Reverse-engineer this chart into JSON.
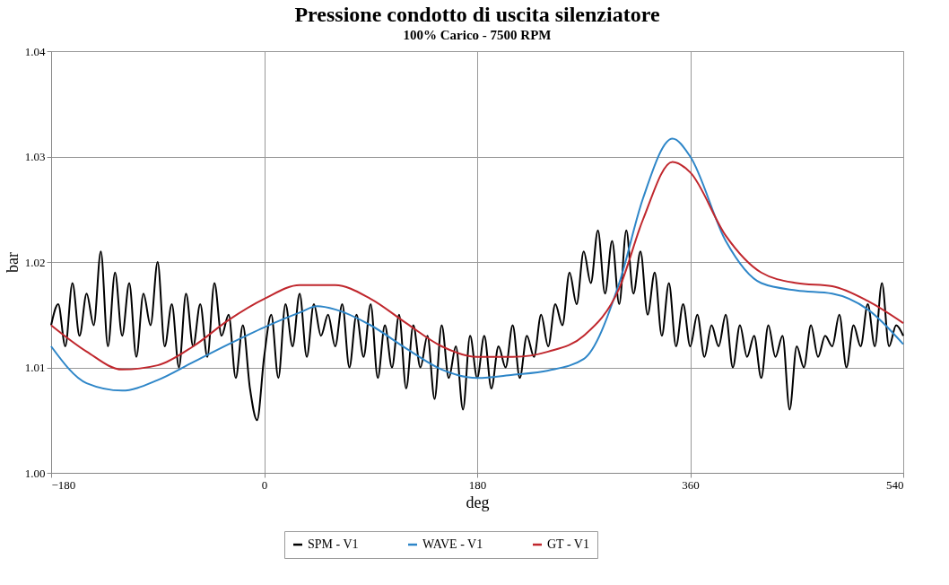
{
  "chart_data": {
    "type": "line",
    "title": "Pressione condotto di uscita silenziatore",
    "subtitle": "100% Carico - 7500 RPM",
    "xlabel": "deg",
    "ylabel": "bar",
    "xlim": [
      -180,
      540
    ],
    "xticks": [
      -180,
      0,
      180,
      360,
      540
    ],
    "ylim": [
      1.0,
      1.04
    ],
    "yticks": [
      {
        "value": 1.0,
        "label": "1.00"
      },
      1.01,
      1.02,
      1.03,
      1.04
    ],
    "grid": true,
    "legend": "bottom",
    "line_style": "solid",
    "marker": "none",
    "series": [
      {
        "name": "SPM - V1",
        "color": "#000000",
        "x": [
          -180,
          -174,
          -168,
          -162,
          -156,
          -150,
          -144,
          -138,
          -132,
          -126,
          -120,
          -114,
          -108,
          -102,
          -96,
          -90,
          -84,
          -78,
          -72,
          -66,
          -60,
          -54,
          -48,
          -42,
          -36,
          -30,
          -24,
          -18,
          -12,
          -6,
          0,
          6,
          12,
          18,
          24,
          30,
          36,
          42,
          48,
          54,
          60,
          66,
          72,
          78,
          84,
          90,
          96,
          102,
          108,
          114,
          120,
          126,
          132,
          138,
          144,
          150,
          156,
          162,
          168,
          174,
          180,
          186,
          192,
          198,
          204,
          210,
          216,
          222,
          228,
          234,
          240,
          246,
          252,
          258,
          264,
          270,
          276,
          282,
          288,
          294,
          300,
          306,
          312,
          318,
          324,
          330,
          336,
          342,
          348,
          354,
          360,
          366,
          372,
          378,
          384,
          390,
          396,
          402,
          408,
          414,
          420,
          426,
          432,
          438,
          444,
          450,
          456,
          462,
          468,
          474,
          480,
          486,
          492,
          498,
          504,
          510,
          516,
          522,
          528,
          534,
          540
        ],
        "values": [
          1.014,
          1.016,
          1.012,
          1.018,
          1.013,
          1.017,
          1.014,
          1.021,
          1.012,
          1.019,
          1.013,
          1.018,
          1.011,
          1.017,
          1.014,
          1.02,
          1.012,
          1.016,
          1.01,
          1.017,
          1.012,
          1.016,
          1.011,
          1.018,
          1.013,
          1.015,
          1.009,
          1.014,
          1.008,
          1.005,
          1.011,
          1.015,
          1.009,
          1.016,
          1.012,
          1.017,
          1.011,
          1.016,
          1.013,
          1.015,
          1.012,
          1.016,
          1.01,
          1.015,
          1.011,
          1.016,
          1.009,
          1.014,
          1.01,
          1.015,
          1.008,
          1.014,
          1.01,
          1.013,
          1.007,
          1.014,
          1.009,
          1.012,
          1.006,
          1.013,
          1.009,
          1.013,
          1.008,
          1.012,
          1.01,
          1.014,
          1.009,
          1.013,
          1.011,
          1.015,
          1.012,
          1.016,
          1.014,
          1.019,
          1.016,
          1.021,
          1.018,
          1.023,
          1.017,
          1.022,
          1.016,
          1.023,
          1.017,
          1.021,
          1.015,
          1.019,
          1.013,
          1.018,
          1.012,
          1.016,
          1.012,
          1.015,
          1.011,
          1.014,
          1.012,
          1.015,
          1.01,
          1.014,
          1.011,
          1.013,
          1.009,
          1.014,
          1.011,
          1.013,
          1.006,
          1.012,
          1.01,
          1.014,
          1.011,
          1.013,
          1.012,
          1.015,
          1.01,
          1.014,
          1.012,
          1.016,
          1.012,
          1.018,
          1.012,
          1.014,
          1.013
        ]
      },
      {
        "name": "WAVE - V1",
        "color": "#2e86c8",
        "x": [
          -180,
          -150,
          -120,
          -90,
          -60,
          -30,
          0,
          30,
          45,
          60,
          90,
          120,
          150,
          180,
          210,
          240,
          270,
          300,
          320,
          345,
          360,
          390,
          420,
          450,
          480,
          510,
          540
        ],
        "values": [
          1.012,
          1.0085,
          1.0078,
          1.0088,
          1.0105,
          1.0122,
          1.0138,
          1.0152,
          1.0158,
          1.0155,
          1.014,
          1.0118,
          1.0098,
          1.009,
          1.0093,
          1.0097,
          1.0108,
          1.018,
          1.026,
          1.0317,
          1.03,
          1.022,
          1.018,
          1.0173,
          1.017,
          1.0155,
          1.0122
        ]
      },
      {
        "name": "GT - V1",
        "color": "#c0272d",
        "x": [
          -180,
          -150,
          -120,
          -90,
          -60,
          -30,
          0,
          30,
          60,
          90,
          120,
          150,
          180,
          210,
          240,
          270,
          300,
          320,
          345,
          360,
          390,
          420,
          450,
          480,
          510,
          540
        ],
        "values": [
          1.014,
          1.0115,
          1.0098,
          1.0102,
          1.012,
          1.0145,
          1.0165,
          1.0178,
          1.0178,
          1.0165,
          1.0142,
          1.012,
          1.011,
          1.011,
          1.0115,
          1.013,
          1.0175,
          1.024,
          1.0295,
          1.0285,
          1.0225,
          1.019,
          1.018,
          1.0177,
          1.0163,
          1.0142
        ]
      }
    ]
  }
}
